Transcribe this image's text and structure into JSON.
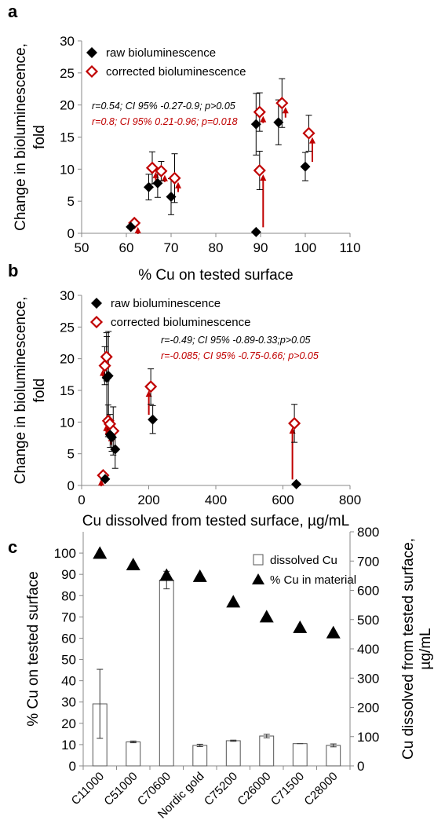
{
  "chart_data": [
    {
      "panel": "a",
      "type": "scatter",
      "xlabel": "% Cu on tested surface",
      "ylabel": "Change in  bioluminescence, fold",
      "xlim": [
        50,
        110
      ],
      "ylim": [
        0,
        30
      ],
      "xticks": [
        50,
        60,
        70,
        80,
        90,
        100,
        110
      ],
      "yticks": [
        0,
        5,
        10,
        15,
        20,
        25,
        30
      ],
      "legend_position": "top-left",
      "series": [
        {
          "name": "raw bioluminescence",
          "marker": "filled-diamond",
          "color": "#000000",
          "x": [
            61,
            65,
            67,
            70,
            89,
            89,
            94,
            100
          ],
          "y": [
            1.0,
            7.2,
            7.8,
            5.7,
            0.2,
            17.0,
            17.3,
            10.4
          ],
          "err": [
            0.3,
            2.0,
            2.2,
            2.8,
            0.2,
            4.8,
            3.5,
            2.2
          ]
        },
        {
          "name": "corrected bioluminescence",
          "marker": "open-diamond",
          "color": "#c00000",
          "x": [
            61,
            65,
            67,
            70,
            89,
            89,
            94,
            100
          ],
          "y": [
            1.6,
            10.2,
            9.7,
            8.6,
            9.8,
            18.9,
            20.3,
            15.6
          ],
          "err": [
            0.3,
            2.5,
            1.5,
            3.8,
            3.0,
            3.0,
            3.8,
            2.8
          ]
        }
      ],
      "annotations": [
        {
          "text": "r=0.54; CI 95% -0.27-0.9; p>0.05",
          "color": "#000000"
        },
        {
          "text": "r=0.8; CI 95% 0.21-0.96; p=0.018",
          "color": "#c00000"
        }
      ]
    },
    {
      "panel": "b",
      "type": "scatter",
      "xlabel": "Cu dissolved from tested surface, µg/mL",
      "ylabel": "Change in  bioluminescence, fold",
      "xlim": [
        0,
        800
      ],
      "ylim": [
        0,
        30
      ],
      "xticks": [
        0,
        200,
        400,
        600,
        800
      ],
      "yticks": [
        0,
        5,
        10,
        15,
        20,
        25,
        30
      ],
      "legend_position": "top-left",
      "series": [
        {
          "name": "raw bioluminescence",
          "marker": "filled-diamond",
          "color": "#000000",
          "x": [
            70,
            75,
            80,
            85,
            90,
            100,
            212,
            640
          ],
          "y": [
            1.0,
            17.0,
            17.3,
            8.0,
            7.6,
            5.7,
            10.4,
            0.2
          ],
          "err": [
            0.3,
            6.5,
            7.0,
            2.0,
            2.2,
            3.0,
            2.2,
            0.2
          ]
        },
        {
          "name": "corrected bioluminescence",
          "marker": "open-diamond",
          "color": "#c00000",
          "x": [
            70,
            75,
            80,
            85,
            90,
            100,
            212,
            640
          ],
          "y": [
            1.6,
            18.9,
            20.3,
            10.2,
            9.7,
            8.6,
            15.6,
            9.8
          ],
          "err": [
            0.3,
            3.0,
            3.8,
            2.5,
            1.5,
            3.8,
            2.8,
            3.0
          ]
        }
      ],
      "annotations": [
        {
          "text": "r=-0.49; CI 95% -0.89-0.33;p>0.05",
          "color": "#000000"
        },
        {
          "text": "r=-0.085; CI 95% -0.75-0.66; p>0.05",
          "color": "#c00000"
        }
      ]
    },
    {
      "panel": "c",
      "type": "bar",
      "categories": [
        "C11000",
        "C51000",
        "C70600",
        "Nordic gold",
        "C75200",
        "C26000",
        "C71500",
        "C28000"
      ],
      "ylabel": "% Cu on tested surface",
      "y2label": "Cu dissolved from tested surface, µg/mL",
      "ylim": [
        0,
        110
      ],
      "yticks": [
        0,
        10,
        20,
        30,
        40,
        50,
        60,
        70,
        80,
        90,
        100
      ],
      "y2lim": [
        0,
        800
      ],
      "y2ticks": [
        0,
        100,
        200,
        300,
        400,
        500,
        600,
        700,
        800
      ],
      "legend_position": "top-right",
      "series": [
        {
          "name": "dissolved Cu",
          "kind": "bar",
          "axis": "right",
          "style": "open",
          "values": [
            212,
            82,
            635,
            70,
            86,
            102,
            76,
            70
          ],
          "err": [
            118,
            3,
            30,
            4,
            2,
            6,
            0,
            5
          ]
        },
        {
          "name": "% Cu in material",
          "kind": "marker",
          "axis": "left",
          "style": "filled-triangle",
          "values": [
            99.9,
            94.5,
            89.5,
            89.0,
            77.0,
            70.0,
            65.0,
            62.5
          ]
        }
      ]
    }
  ]
}
